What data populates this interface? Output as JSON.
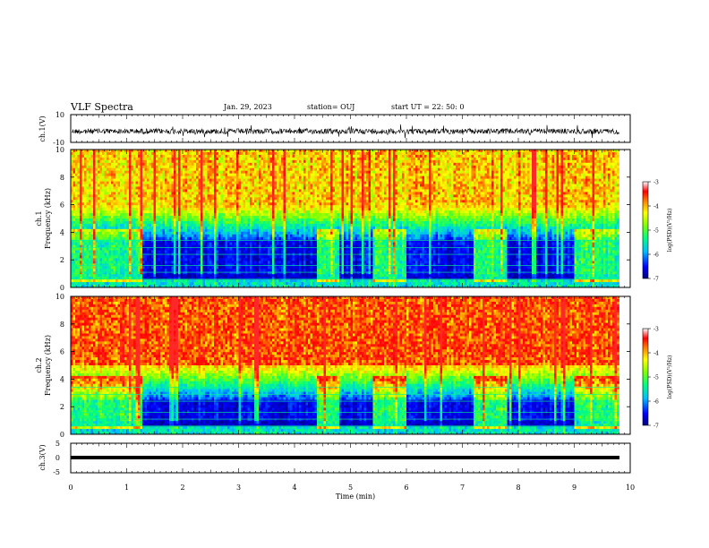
{
  "header": {
    "title": "VLF Spectra",
    "date": "Jan. 29, 2023",
    "station": "station= OUJ",
    "start": "start  UT =   22: 50: 0"
  },
  "chart_data": [
    {
      "type": "line",
      "name": "ch1-waveform",
      "ylabel": "ch.1(V)",
      "ylim": [
        -10,
        10
      ],
      "yticks": [
        10,
        -10
      ],
      "xlim": [
        0,
        10
      ],
      "series": [
        {
          "values_note_x": [
            0,
            9.8
          ],
          "y_mean": -2,
          "y_range": [
            -6,
            2
          ]
        }
      ]
    },
    {
      "type": "heatmap",
      "name": "ch1-spectrogram",
      "xlabel": "",
      "ylabel_line1": "ch.1",
      "ylabel_line2": "Frequency  (kHz)",
      "xlim": [
        0,
        10
      ],
      "ylim": [
        0,
        10
      ],
      "yticks": [
        0,
        2,
        4,
        6,
        8,
        10
      ],
      "data_extent_x": [
        0,
        9.8
      ],
      "colorbar": {
        "label": "log(PSD)(V²/Hz)",
        "ticks": [
          -3,
          -4,
          -5,
          -6,
          -7
        ],
        "range": [
          -7,
          -3
        ]
      },
      "quiet_segments_min": [
        [
          0,
          1.3
        ],
        [
          4.4,
          4.8
        ],
        [
          5.4,
          6.0
        ],
        [
          7.2,
          7.8
        ],
        [
          9.0,
          9.8
        ]
      ],
      "low_power_band_khz": [
        0.5,
        3.5
      ],
      "high_power_above_khz": 6
    },
    {
      "type": "heatmap",
      "name": "ch2-spectrogram",
      "ylabel_line1": "ch.2",
      "ylabel_line2": "Frequency  (kHz)",
      "xlim": [
        0,
        10
      ],
      "ylim": [
        0,
        10
      ],
      "yticks": [
        0,
        2,
        4,
        6,
        8,
        10
      ],
      "data_extent_x": [
        0,
        9.8
      ],
      "colorbar": {
        "label": "log(PSD)(V²/Hz)",
        "ticks": [
          -3,
          -4,
          -5,
          -6,
          -7
        ],
        "range": [
          -7,
          -3
        ]
      },
      "quiet_segments_min": [
        [
          0,
          1.3
        ],
        [
          4.4,
          4.8
        ],
        [
          5.4,
          6.0
        ],
        [
          7.2,
          7.8
        ],
        [
          9.0,
          9.8
        ]
      ],
      "low_power_band_khz": [
        0.5,
        2.5
      ],
      "high_power_above_khz": 5
    },
    {
      "type": "line",
      "name": "ch3-waveform",
      "ylabel": "ch.3(V)",
      "xlabel": "Time  (min)",
      "ylim": [
        -5,
        5
      ],
      "yticks": [
        5,
        0,
        -5
      ],
      "xlim": [
        0,
        10
      ],
      "xticks": [
        0,
        1,
        2,
        3,
        4,
        5,
        6,
        7,
        8,
        9,
        10
      ],
      "series": [
        {
          "values_note_x": [
            0,
            9.8
          ],
          "y_constant": -1
        }
      ]
    }
  ],
  "colors": {
    "ink": "#000000",
    "colormap": [
      "#00008b",
      "#0000ff",
      "#00bfff",
      "#00ff80",
      "#80ff00",
      "#ffff00",
      "#ffa500",
      "#ff2000",
      "#ffffff"
    ]
  }
}
